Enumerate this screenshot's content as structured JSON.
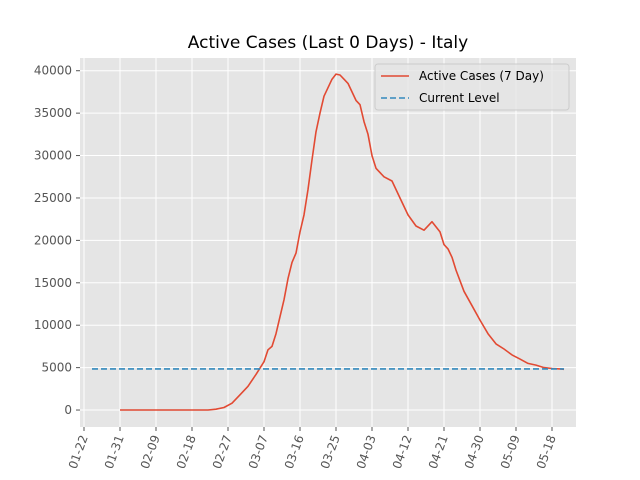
{
  "chart_data": {
    "type": "line",
    "title": "Active Cases (Last 0 Days) - Italy",
    "xlabel": "",
    "ylabel": "",
    "grid": true,
    "legend_position": "top-right",
    "x_tick_labels": [
      "01-22",
      "01-31",
      "02-09",
      "02-18",
      "02-27",
      "03-07",
      "03-16",
      "03-25",
      "04-03",
      "04-12",
      "04-21",
      "04-30",
      "05-09",
      "05-18"
    ],
    "y_ticks": [
      0,
      5000,
      10000,
      15000,
      20000,
      25000,
      30000,
      35000,
      40000
    ],
    "ylim": [
      -2000,
      41500
    ],
    "xlim": [
      "2020-01-21",
      "2020-05-24"
    ],
    "colors": {
      "series": "#E24A33",
      "reference": "#348ABD",
      "background": "#E5E5E5",
      "grid": "#FFFFFF"
    },
    "series": [
      {
        "name": "Active Cases (7 Day)",
        "style": "solid",
        "x": [
          "2020-01-31",
          "2020-02-09",
          "2020-02-18",
          "2020-02-22",
          "2020-02-24",
          "2020-02-26",
          "2020-02-28",
          "2020-03-01",
          "2020-03-03",
          "2020-03-05",
          "2020-03-07",
          "2020-03-08",
          "2020-03-09",
          "2020-03-10",
          "2020-03-11",
          "2020-03-12",
          "2020-03-13",
          "2020-03-14",
          "2020-03-15",
          "2020-03-16",
          "2020-03-17",
          "2020-03-18",
          "2020-03-19",
          "2020-03-20",
          "2020-03-21",
          "2020-03-22",
          "2020-03-23",
          "2020-03-24",
          "2020-03-25",
          "2020-03-26",
          "2020-03-27",
          "2020-03-28",
          "2020-03-29",
          "2020-03-30",
          "2020-03-31",
          "2020-04-01",
          "2020-04-02",
          "2020-04-03",
          "2020-04-04",
          "2020-04-06",
          "2020-04-08",
          "2020-04-10",
          "2020-04-12",
          "2020-04-14",
          "2020-04-16",
          "2020-04-18",
          "2020-04-20",
          "2020-04-21",
          "2020-04-22",
          "2020-04-23",
          "2020-04-24",
          "2020-04-26",
          "2020-04-28",
          "2020-04-30",
          "2020-05-02",
          "2020-05-04",
          "2020-05-06",
          "2020-05-08",
          "2020-05-10",
          "2020-05-12",
          "2020-05-14",
          "2020-05-16",
          "2020-05-18",
          "2020-05-20",
          "2020-05-21"
        ],
        "y": [
          0,
          0,
          0,
          0,
          100,
          300,
          800,
          1800,
          2800,
          4200,
          5700,
          7100,
          7500,
          9000,
          11000,
          13000,
          15500,
          17400,
          18500,
          21000,
          23000,
          26000,
          29500,
          32800,
          35000,
          37000,
          38000,
          39000,
          39600,
          39500,
          39000,
          38500,
          37500,
          36500,
          36000,
          34000,
          32500,
          30000,
          28500,
          27500,
          27000,
          25000,
          23000,
          21700,
          21200,
          22200,
          21000,
          19500,
          19000,
          18000,
          16500,
          14000,
          12300,
          10600,
          9000,
          7800,
          7200,
          6500,
          6000,
          5500,
          5300,
          5000,
          4900,
          4850,
          4800
        ],
        "marker_note": ""
      },
      {
        "name": "Current Level",
        "style": "dashed",
        "x": [
          "2020-01-24",
          "2020-05-21"
        ],
        "y": [
          4850,
          4850
        ]
      }
    ]
  }
}
